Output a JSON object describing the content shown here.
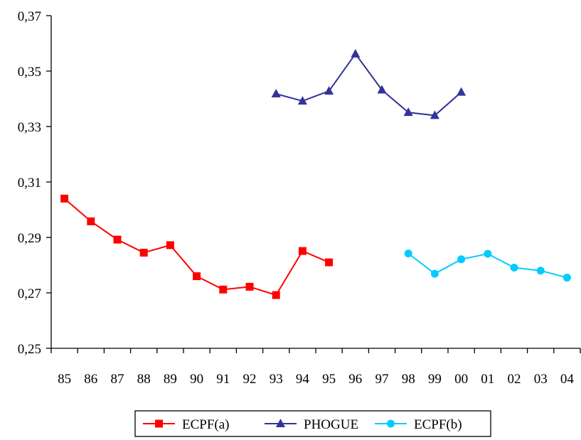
{
  "chart_data": {
    "type": "line",
    "title": "",
    "xlabel": "",
    "ylabel": "",
    "categories": [
      "85",
      "86",
      "87",
      "88",
      "89",
      "90",
      "91",
      "92",
      "93",
      "94",
      "95",
      "96",
      "97",
      "98",
      "99",
      "00",
      "01",
      "02",
      "03",
      "04"
    ],
    "y_ticks": [
      "0,25",
      "0,27",
      "0,29",
      "0,31",
      "0,33",
      "0,35",
      "0,37"
    ],
    "ylim": [
      0.25,
      0.37
    ],
    "y_tick_values": [
      0.25,
      0.27,
      0.29,
      0.31,
      0.33,
      0.35,
      0.37
    ],
    "grid": false,
    "legend_position": "bottom",
    "series": [
      {
        "name": "ECPF(a)",
        "color": "#ff0000",
        "marker": "square",
        "values": [
          0.304,
          0.2958,
          0.2892,
          0.2845,
          0.2872,
          0.276,
          0.2712,
          0.2722,
          0.2692,
          0.2851,
          0.281,
          null,
          null,
          null,
          null,
          null,
          null,
          null,
          null,
          null
        ]
      },
      {
        "name": "PHOGUE",
        "color": "#333399",
        "marker": "triangle",
        "values": [
          null,
          null,
          null,
          null,
          null,
          null,
          null,
          null,
          0.3418,
          0.3392,
          0.3428,
          0.3562,
          0.3432,
          0.3351,
          0.334,
          0.3424,
          null,
          null,
          null,
          null
        ]
      },
      {
        "name": "ECPF(b)",
        "color": "#00ccff",
        "marker": "circle",
        "values": [
          null,
          null,
          null,
          null,
          null,
          null,
          null,
          null,
          null,
          null,
          null,
          null,
          null,
          0.2842,
          0.2769,
          0.2821,
          0.2841,
          0.2791,
          0.278,
          0.2755
        ]
      }
    ]
  }
}
